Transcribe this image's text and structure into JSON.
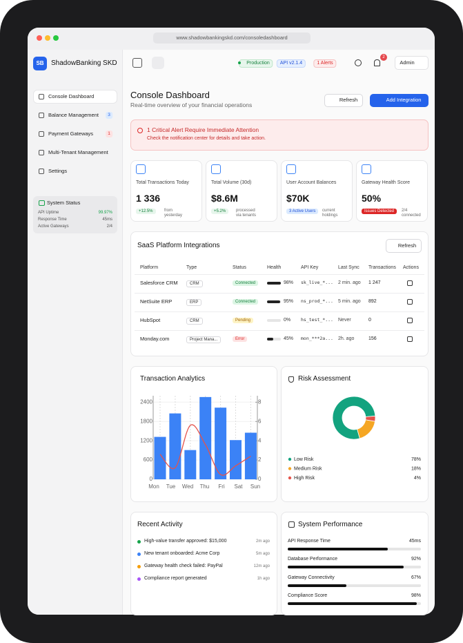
{
  "browser": {
    "url": "www.shadowbankingskd.com/consoledashboard"
  },
  "sidebar": {
    "logo": "SB",
    "brand": "ShadowBanking SKD",
    "nav": [
      {
        "label": "Console Dashboard"
      },
      {
        "label": "Balance Management",
        "badge": "3"
      },
      {
        "label": "Payment Gateways",
        "badge": "1"
      },
      {
        "label": "Multi-Tenant Management"
      },
      {
        "label": "Settings"
      }
    ],
    "system_status": {
      "title": "System Status",
      "rows": [
        {
          "label": "API Uptime",
          "value": "99.97%"
        },
        {
          "label": "Response Time",
          "value": "45ms"
        },
        {
          "label": "Active Gateways",
          "value": "2/4"
        }
      ]
    }
  },
  "topbar": {
    "environment": "Production",
    "api_version": "API v2.1.4",
    "alerts": "1 Alerts",
    "notifications": "2",
    "user": "Admin"
  },
  "header": {
    "title": "Console Dashboard",
    "subtitle": "Real-time overview of your financial operations",
    "refresh": "Refresh",
    "add": "Add Integration"
  },
  "alert": {
    "title": "1 Critical Alert Require Immediate Attention",
    "text": "Check the notification center for details and take action."
  },
  "stats": [
    {
      "label": "Total Transactions Today",
      "value": "1 336",
      "delta": "+12.5%",
      "note": "from yesterday"
    },
    {
      "label": "Total Volume (30d)",
      "value": "$8.6M",
      "delta": "+5.2%",
      "note": "processed via tenants"
    },
    {
      "label": "User Account Balances",
      "value": "$70K",
      "delta": "3 Active Users",
      "note": "current holdings"
    },
    {
      "label": "Gateway Health Score",
      "value": "50%",
      "delta": "Issues Detected",
      "note": "2/4 connected"
    }
  ],
  "integrations": {
    "title": "SaaS Platform Integrations",
    "refresh": "Refresh",
    "columns": [
      "Platform",
      "Type",
      "Status",
      "Health",
      "API Key",
      "Last Sync",
      "Transactions",
      "Actions"
    ],
    "rows": [
      {
        "platform": "Salesforce CRM",
        "type": "CRM",
        "status": "Connected",
        "health": 98,
        "health_label": "98%",
        "api_key": "sk_live_*...",
        "last_sync": "2 min. ago",
        "transactions": "1 247"
      },
      {
        "platform": "NetSuite ERP",
        "type": "ERP",
        "status": "Connected",
        "health": 95,
        "health_label": "95%",
        "api_key": "ns_prod_*...",
        "last_sync": "5 min. ago",
        "transactions": "892"
      },
      {
        "platform": "HubSpot",
        "type": "CRM",
        "status": "Pending",
        "health": 0,
        "health_label": "0%",
        "api_key": "hs_test_*...",
        "last_sync": "Never",
        "transactions": "0"
      },
      {
        "platform": "Monday.com",
        "type": "Project Mana...",
        "status": "Error",
        "health": 45,
        "health_label": "45%",
        "api_key": "mon_***2a...",
        "last_sync": "2h. ago",
        "transactions": "156"
      }
    ]
  },
  "chart_data": [
    {
      "type": "bar-line",
      "title": "Transaction Analytics",
      "categories": [
        "Mon",
        "Tue",
        "Wed",
        "Thu",
        "Fri",
        "Sat",
        "Sun"
      ],
      "series": [
        {
          "type": "bar",
          "color": "#3b82f6",
          "values": [
            1320,
            2050,
            910,
            2560,
            2230,
            1220,
            1450
          ]
        },
        {
          "type": "line",
          "axis": "y2",
          "color": "#e5534b",
          "values": [
            2.6,
            1.2,
            5.6,
            3.6,
            0.5,
            1.4,
            2.4
          ]
        }
      ],
      "ylim": [
        0,
        2600
      ],
      "yticks": [
        0,
        600,
        1200,
        1800,
        2400
      ],
      "y2lim": [
        0,
        8.67
      ],
      "y2ticks": [
        0,
        2,
        4,
        6,
        8
      ],
      "grid": true
    },
    {
      "type": "pie",
      "title": "Risk Assessment",
      "categories": [
        "Low Risk",
        "Medium Risk",
        "High Risk"
      ],
      "values": [
        78,
        18,
        4
      ],
      "value_labels": [
        "78%",
        "18%",
        "4%"
      ],
      "colors": [
        "#13a37f",
        "#f5a623",
        "#e5534b"
      ]
    }
  ],
  "activity": {
    "title": "Recent Activity",
    "items": [
      {
        "text": "High-value transfer approved: $15,000",
        "time": "2m ago",
        "color": "#16a34a"
      },
      {
        "text": "New tenant onboarded: Acme Corp",
        "time": "5m ago",
        "color": "#3b82f6"
      },
      {
        "text": "Gateway health check failed: PayPal",
        "time": "12m ago",
        "color": "#f59e0b"
      },
      {
        "text": "Compliance report generated",
        "time": "1h ago",
        "color": "#a855f7"
      }
    ]
  },
  "performance": {
    "title": "System Performance",
    "items": [
      {
        "label": "API Response Time",
        "value": "45ms",
        "progress": 75
      },
      {
        "label": "Database Performance",
        "value": "92%",
        "progress": 87
      },
      {
        "label": "Gateway Connectivity",
        "value": "67%",
        "progress": 44
      },
      {
        "label": "Compliance Score",
        "value": "98%",
        "progress": 97
      }
    ]
  }
}
